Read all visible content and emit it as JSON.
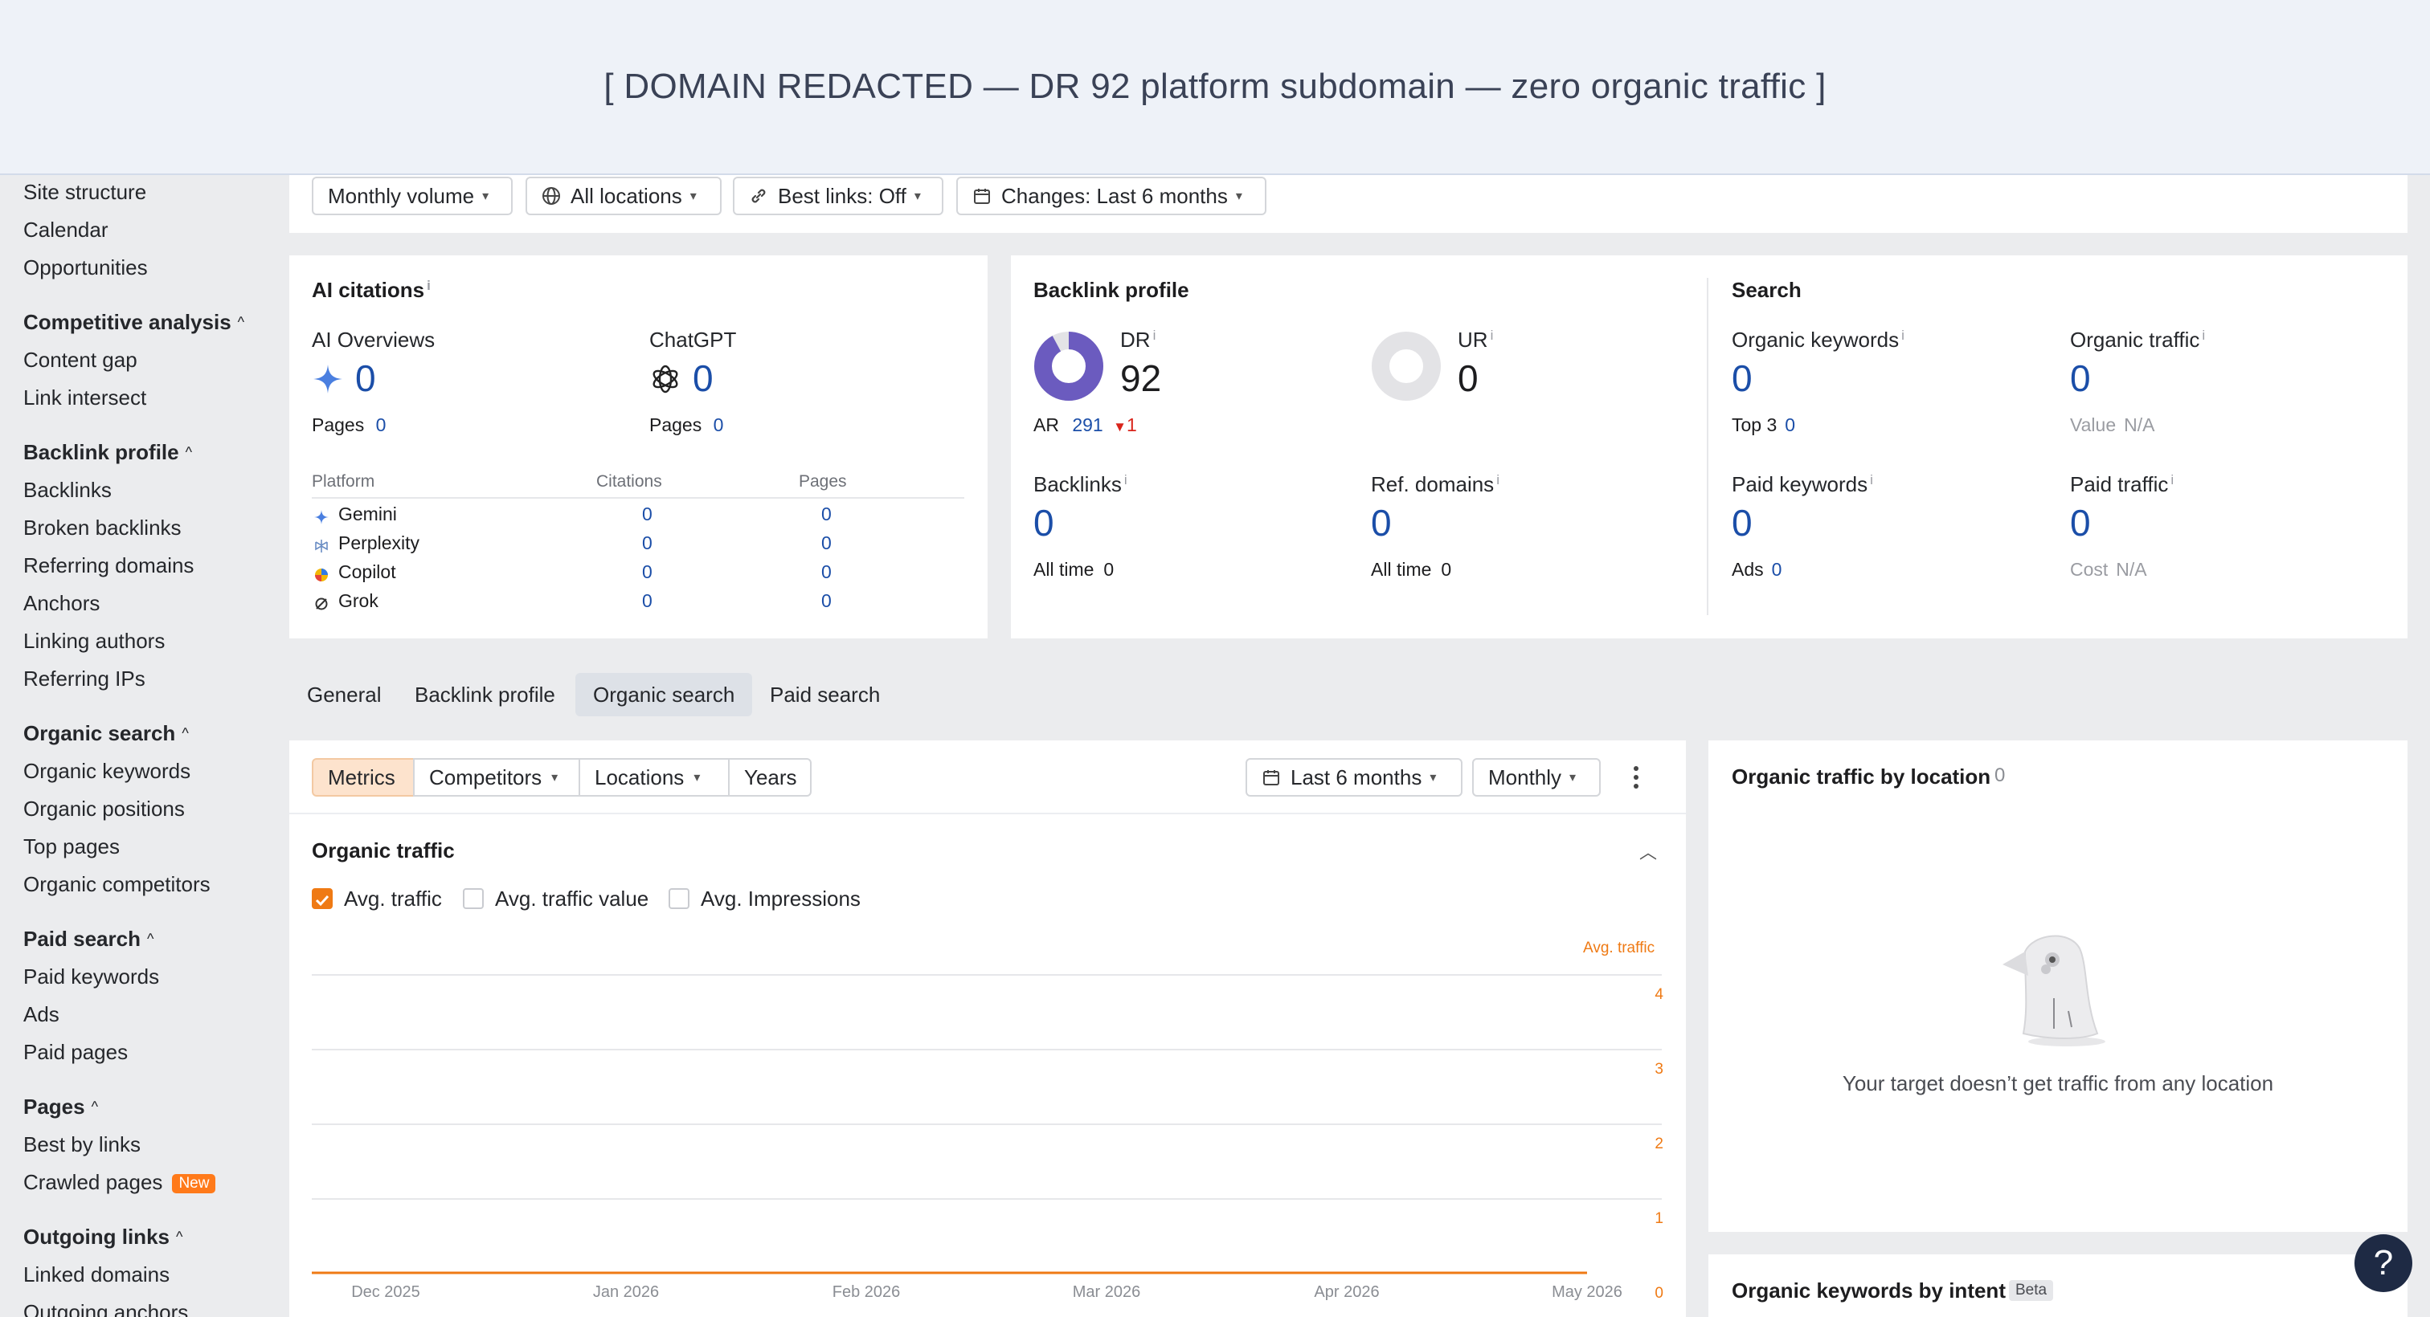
{
  "banner": {
    "text": "[ DOMAIN REDACTED — DR 92 platform subdomain — zero organic traffic ]"
  },
  "sidebar": {
    "items_top": [
      "Site structure",
      "Calendar",
      "Opportunities"
    ],
    "competitive": {
      "title": "Competitive analysis",
      "items": [
        "Content gap",
        "Link intersect"
      ]
    },
    "backlink": {
      "title": "Backlink profile",
      "items": [
        "Backlinks",
        "Broken backlinks",
        "Referring domains",
        "Anchors",
        "Linking authors",
        "Referring IPs"
      ]
    },
    "organic": {
      "title": "Organic search",
      "items": [
        "Organic keywords",
        "Organic positions",
        "Top pages",
        "Organic competitors"
      ]
    },
    "paid": {
      "title": "Paid search",
      "items": [
        "Paid keywords",
        "Ads",
        "Paid pages"
      ]
    },
    "pages": {
      "title": "Pages",
      "items": [
        "Best by links",
        "Crawled pages"
      ],
      "new_badge": "New"
    },
    "outgoing": {
      "title": "Outgoing links",
      "items": [
        "Linked domains",
        "Outgoing anchors"
      ]
    }
  },
  "filters": {
    "volume": "Monthly volume",
    "locations": "All locations",
    "best_links": "Best links: Off",
    "changes": "Changes: Last 6 months"
  },
  "ai_citations": {
    "title": "AI citations",
    "ai_overviews": {
      "label": "AI Overviews",
      "value": "0",
      "pages_label": "Pages",
      "pages": "0"
    },
    "chatgpt": {
      "label": "ChatGPT",
      "value": "0",
      "pages_label": "Pages",
      "pages": "0"
    },
    "table": {
      "headers": [
        "Platform",
        "Citations",
        "Pages"
      ],
      "rows": [
        {
          "platform": "Gemini",
          "citations": "0",
          "pages": "0"
        },
        {
          "platform": "Perplexity",
          "citations": "0",
          "pages": "0"
        },
        {
          "platform": "Copilot",
          "citations": "0",
          "pages": "0"
        },
        {
          "platform": "Grok",
          "citations": "0",
          "pages": "0"
        }
      ]
    }
  },
  "backlink_profile": {
    "title": "Backlink profile",
    "dr": {
      "label": "DR",
      "value": "92",
      "fill_fraction": 0.92
    },
    "ar": {
      "label": "AR",
      "value": "291",
      "change": "1",
      "change_color": "#d9241b"
    },
    "ur": {
      "label": "UR",
      "value": "0"
    },
    "backlinks": {
      "label": "Backlinks",
      "value": "0",
      "alltime_label": "All time",
      "alltime": "0"
    },
    "ref_domains": {
      "label": "Ref. domains",
      "value": "0",
      "alltime_label": "All time",
      "alltime": "0"
    }
  },
  "search": {
    "title": "Search",
    "organic_keywords": {
      "label": "Organic keywords",
      "value": "0",
      "sub_label": "Top 3",
      "sub_value": "0"
    },
    "organic_traffic": {
      "label": "Organic traffic",
      "value": "0",
      "sub_label": "Value",
      "sub_value": "N/A"
    },
    "paid_keywords": {
      "label": "Paid keywords",
      "value": "0",
      "sub_label": "Ads",
      "sub_value": "0"
    },
    "paid_traffic": {
      "label": "Paid traffic",
      "value": "0",
      "sub_label": "Cost",
      "sub_value": "N/A"
    }
  },
  "tabs": [
    "General",
    "Backlink profile",
    "Organic search",
    "Paid search"
  ],
  "active_tab": "Organic search",
  "chart_toolbar": {
    "segments": [
      "Metrics",
      "Competitors",
      "Locations",
      "Years"
    ],
    "period": "Last 6 months",
    "granularity": "Monthly"
  },
  "organic_traffic_card": {
    "title": "Organic traffic",
    "checks": [
      {
        "label": "Avg. traffic",
        "checked": true
      },
      {
        "label": "Avg. traffic value",
        "checked": false
      },
      {
        "label": "Avg. Impressions",
        "checked": false
      }
    ]
  },
  "chart_data": {
    "type": "line",
    "series": [
      {
        "name": "Avg. traffic",
        "color": "#ef7a14",
        "values": [
          0,
          0,
          0,
          0,
          0,
          0
        ]
      }
    ],
    "x": [
      "Dec 2025",
      "Jan 2026",
      "Feb 2026",
      "Mar 2026",
      "Apr 2026",
      "May 2026"
    ],
    "y_ticks": [
      "4",
      "3",
      "2",
      "1",
      "0"
    ],
    "ylim": [
      0,
      4
    ],
    "ylabel": "Avg. traffic",
    "grid": true
  },
  "by_location": {
    "title": "Organic traffic by location",
    "count": "0",
    "empty_text": "Your target doesn’t get traffic from any location"
  },
  "by_intent": {
    "title": "Organic keywords by intent",
    "badge": "Beta"
  },
  "help": {
    "label": "?"
  }
}
